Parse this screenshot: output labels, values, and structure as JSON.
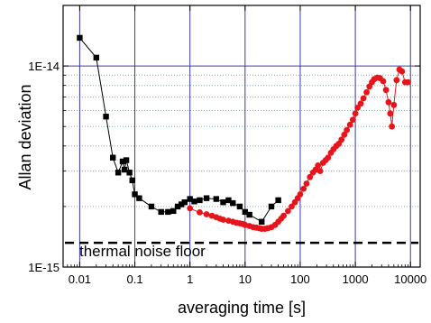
{
  "chart_data": {
    "type": "scatter",
    "xlabel": "averaging time [s]",
    "ylabel": "Allan deviation",
    "x_scale": "log",
    "y_scale": "log",
    "xlim": [
      0.005,
      15000
    ],
    "ylim": [
      1e-15,
      2e-14
    ],
    "x_ticks": [
      {
        "value": 0.01,
        "label": "0.01"
      },
      {
        "value": 0.1,
        "label": "0.1"
      },
      {
        "value": 1,
        "label": "1"
      },
      {
        "value": 10,
        "label": "10"
      },
      {
        "value": 100,
        "label": "100"
      },
      {
        "value": 1000,
        "label": "1000"
      },
      {
        "value": 10000,
        "label": "10000"
      }
    ],
    "y_ticks": [
      {
        "value": 1e-15,
        "label": "1E-15"
      },
      {
        "value": 1e-14,
        "label": "1E-14"
      }
    ],
    "y_minor_grid": [
      2e-15,
      3e-15,
      4e-15,
      5e-15,
      6e-15,
      7e-15,
      8e-15,
      9e-15
    ],
    "grid": true,
    "colors": {
      "major_grid": "#3a3aa8",
      "minor_grid": "#8fb0a0",
      "series_black": "#000000",
      "series_red": "#e8141c"
    },
    "annotations": [
      {
        "text": "thermal noise floor",
        "y": 1.32e-15,
        "style": "dashed-line"
      }
    ],
    "series": [
      {
        "marker": "square",
        "color": "#000000",
        "points": [
          [
            0.01,
            1.38e-14
          ],
          [
            0.02,
            1.1e-14
          ],
          [
            0.03,
            5.6e-15
          ],
          [
            0.04,
            3.5e-15
          ],
          [
            0.05,
            2.95e-15
          ],
          [
            0.06,
            3.35e-15
          ],
          [
            0.065,
            3.05e-15
          ],
          [
            0.07,
            3.4e-15
          ],
          [
            0.08,
            2.95e-15
          ],
          [
            0.09,
            2.7e-15
          ],
          [
            0.1,
            2.3e-15
          ],
          [
            0.12,
            2.2e-15
          ],
          [
            0.2,
            2e-15
          ],
          [
            0.3,
            1.88e-15
          ],
          [
            0.4,
            1.88e-15
          ],
          [
            0.5,
            1.9e-15
          ],
          [
            0.6,
            2e-15
          ],
          [
            0.7,
            2.05e-15
          ],
          [
            0.8,
            2.1e-15
          ],
          [
            1.0,
            2.18e-15
          ],
          [
            1.2,
            2.12e-15
          ],
          [
            1.5,
            2.15e-15
          ],
          [
            2.0,
            2.2e-15
          ],
          [
            3.0,
            2.18e-15
          ],
          [
            4.0,
            2.1e-15
          ],
          [
            5.0,
            2.15e-15
          ],
          [
            6.0,
            2.08e-15
          ],
          [
            8.0,
            2e-15
          ],
          [
            10.0,
            1.88e-15
          ],
          [
            12.0,
            1.82e-15
          ],
          [
            20.0,
            1.68e-15
          ],
          [
            30.0,
            2e-15
          ],
          [
            40.0,
            2.15e-15
          ]
        ]
      },
      {
        "marker": "circle",
        "color": "#e8141c",
        "points": [
          [
            1.0,
            1.96e-15
          ],
          [
            1.5,
            1.87e-15
          ],
          [
            2.0,
            1.83e-15
          ],
          [
            2.5,
            1.8e-15
          ],
          [
            3.0,
            1.77e-15
          ],
          [
            3.5,
            1.74e-15
          ],
          [
            4.0,
            1.72e-15
          ],
          [
            5.0,
            1.7e-15
          ],
          [
            6.0,
            1.68e-15
          ],
          [
            7.0,
            1.66e-15
          ],
          [
            8.0,
            1.65e-15
          ],
          [
            9.0,
            1.64e-15
          ],
          [
            10.0,
            1.62e-15
          ],
          [
            12.0,
            1.6e-15
          ],
          [
            14.0,
            1.58e-15
          ],
          [
            16.0,
            1.57e-15
          ],
          [
            18.0,
            1.56e-15
          ],
          [
            20.0,
            1.55e-15
          ],
          [
            23.0,
            1.55e-15
          ],
          [
            26.0,
            1.56e-15
          ],
          [
            30.0,
            1.58e-15
          ],
          [
            35.0,
            1.62e-15
          ],
          [
            40.0,
            1.68e-15
          ],
          [
            45.0,
            1.74e-15
          ],
          [
            50.0,
            1.8e-15
          ],
          [
            60.0,
            1.9e-15
          ],
          [
            70.0,
            2e-15
          ],
          [
            80.0,
            2.1e-15
          ],
          [
            90.0,
            2.2e-15
          ],
          [
            100.0,
            2.3e-15
          ],
          [
            115.0,
            2.45e-15
          ],
          [
            130.0,
            2.6e-15
          ],
          [
            150.0,
            2.8e-15
          ],
          [
            170.0,
            2.95e-15
          ],
          [
            190.0,
            3.05e-15
          ],
          [
            210.0,
            3.2e-15
          ],
          [
            230.0,
            3e-15
          ],
          [
            260.0,
            3.3e-15
          ],
          [
            290.0,
            3.4e-15
          ],
          [
            320.0,
            3.5e-15
          ],
          [
            360.0,
            3.7e-15
          ],
          [
            400.0,
            3.85e-15
          ],
          [
            450.0,
            4e-15
          ],
          [
            500.0,
            4.1e-15
          ],
          [
            560.0,
            4.3e-15
          ],
          [
            630.0,
            4.55e-15
          ],
          [
            700.0,
            4.8e-15
          ],
          [
            800.0,
            5.1e-15
          ],
          [
            900.0,
            5.4e-15
          ],
          [
            1000.0,
            5.8e-15
          ],
          [
            1100.0,
            6.2e-15
          ],
          [
            1250.0,
            6.5e-15
          ],
          [
            1400.0,
            6.9e-15
          ],
          [
            1600.0,
            7.4e-15
          ],
          [
            1800.0,
            7.9e-15
          ],
          [
            2000.0,
            8.3e-15
          ],
          [
            2200.0,
            8.6e-15
          ],
          [
            2500.0,
            8.75e-15
          ],
          [
            2800.0,
            8.7e-15
          ],
          [
            3200.0,
            8.4e-15
          ],
          [
            3600.0,
            7.6e-15
          ],
          [
            4000.0,
            6.6e-15
          ],
          [
            4300.0,
            5.8e-15
          ],
          [
            4600.0,
            5e-15
          ],
          [
            5000.0,
            6.4e-15
          ],
          [
            5600.0,
            8.5e-15
          ],
          [
            6300.0,
            9.6e-15
          ],
          [
            7000.0,
            9.4e-15
          ],
          [
            8000.0,
            8.3e-15
          ],
          [
            9000.0,
            8.3e-15
          ]
        ]
      }
    ]
  }
}
